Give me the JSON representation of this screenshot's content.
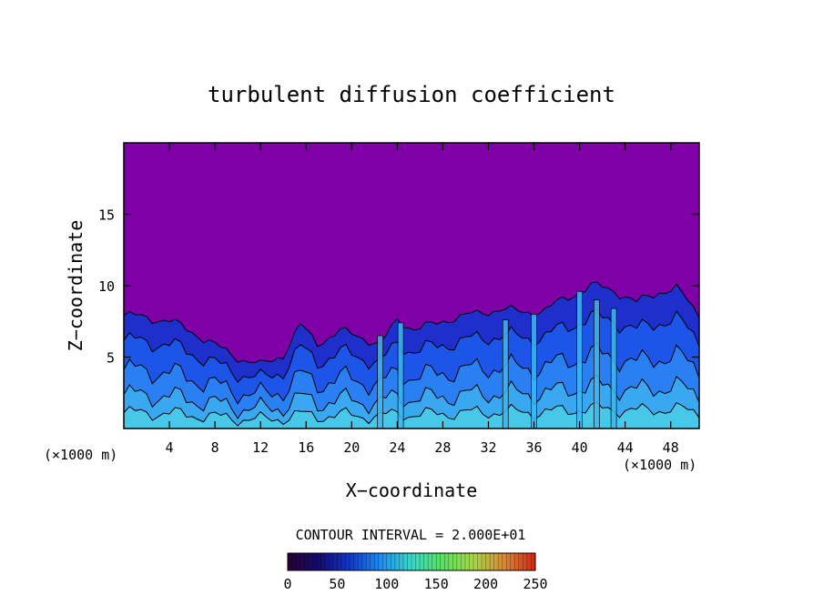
{
  "chart_data": {
    "type": "heatmap",
    "title": "turbulent diffusion coefficient",
    "xlabel": "X−coordinate",
    "ylabel": "Z−coordinate",
    "x_unit_left": "(×1000 m)",
    "x_unit_right": "(×1000 m)",
    "xlim": [
      0,
      50.5
    ],
    "ylim": [
      0,
      20
    ],
    "x_ticks": [
      4,
      8,
      12,
      16,
      20,
      24,
      28,
      32,
      36,
      40,
      44,
      48
    ],
    "y_ticks": [
      5,
      10,
      15
    ],
    "contour_interval_text": "CONTOUR INTERVAL = 2.000E+01",
    "colorbar": {
      "range": [
        0,
        250
      ],
      "ticks": [
        0,
        50,
        100,
        150,
        200,
        250
      ],
      "colors": [
        "#2a0033",
        "#140a6e",
        "#1038c8",
        "#1f8cf0",
        "#38d8c8",
        "#5ae060",
        "#a8d848",
        "#d88838",
        "#d02818"
      ]
    },
    "background_value_color": "#7f00a6",
    "turbulent_layer_top": [
      [
        0,
        7.9
      ],
      [
        2,
        7.8
      ],
      [
        4,
        7.5
      ],
      [
        6,
        6.8
      ],
      [
        8,
        5.8
      ],
      [
        10,
        5.0
      ],
      [
        12,
        4.4
      ],
      [
        14,
        5.2
      ],
      [
        15.5,
        7.2
      ],
      [
        17,
        6.0
      ],
      [
        19,
        6.8
      ],
      [
        21,
        6.4
      ],
      [
        22.5,
        5.8
      ],
      [
        24,
        7.6
      ],
      [
        25.5,
        7.0
      ],
      [
        27,
        7.2
      ],
      [
        29,
        7.8
      ],
      [
        31,
        8.0
      ],
      [
        33,
        8.4
      ],
      [
        35,
        8.1
      ],
      [
        37,
        8.3
      ],
      [
        39,
        9.2
      ],
      [
        41,
        10.0
      ],
      [
        43,
        9.7
      ],
      [
        45,
        8.8
      ],
      [
        47,
        9.6
      ],
      [
        48.5,
        9.8
      ],
      [
        50.5,
        8.0
      ]
    ]
  }
}
